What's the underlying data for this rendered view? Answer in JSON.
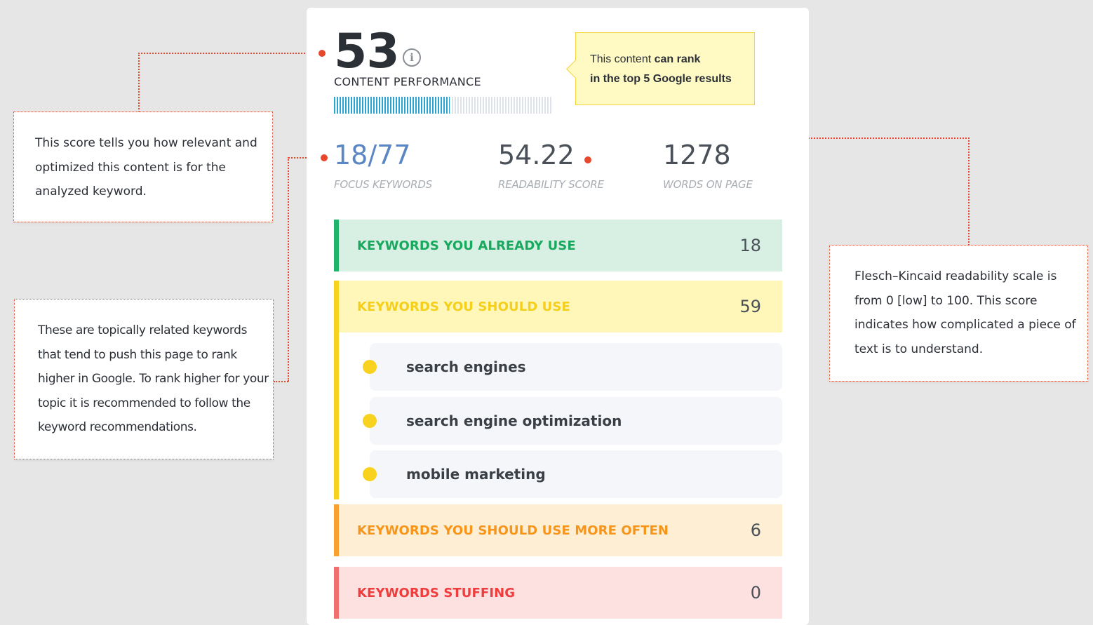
{
  "score": {
    "value": "53",
    "label": "CONTENT PERFORMANCE",
    "progress": 0.53,
    "info_icon": "info-icon"
  },
  "rank_tip": {
    "line1_normal": "This content ",
    "line1_bold": "can rank",
    "line2": "in the top 5 Google results"
  },
  "stats": {
    "focus": {
      "value": "18/77",
      "label": "FOCUS KEYWORDS"
    },
    "readability": {
      "value": "54.22",
      "label": "READABILITY SCORE"
    },
    "words": {
      "value": "1278",
      "label": "WORDS ON PAGE"
    }
  },
  "categories": {
    "already": {
      "label": "KEYWORDS YOU ALREADY USE",
      "count": "18",
      "color": "#1fb36b"
    },
    "should": {
      "label": "KEYWORDS YOU SHOULD USE",
      "count": "59",
      "color": "#f7d21e"
    },
    "more": {
      "label": "KEYWORDS YOU SHOULD USE MORE OFTEN",
      "count": "6",
      "color": "#f9a12e"
    },
    "stuffing": {
      "label": "KEYWORDS STUFFING",
      "count": "0",
      "color": "#f07070"
    }
  },
  "keywords": [
    "search engines",
    "search engine optimization",
    "mobile marketing"
  ],
  "callouts": {
    "score": "This score tells you how relevant and optimized this content is for the analyzed keyword.",
    "focus": "These are topically related keywords that tend to push this page to rank higher in Google. To rank higher for your topic it is recommended to follow the keyword recommendations.",
    "readability": "Flesch–Kincaid readability scale is from 0 [low] to 100. This score indicates how complicated a piece of text is to understand."
  },
  "accent_color": "#e8472b"
}
